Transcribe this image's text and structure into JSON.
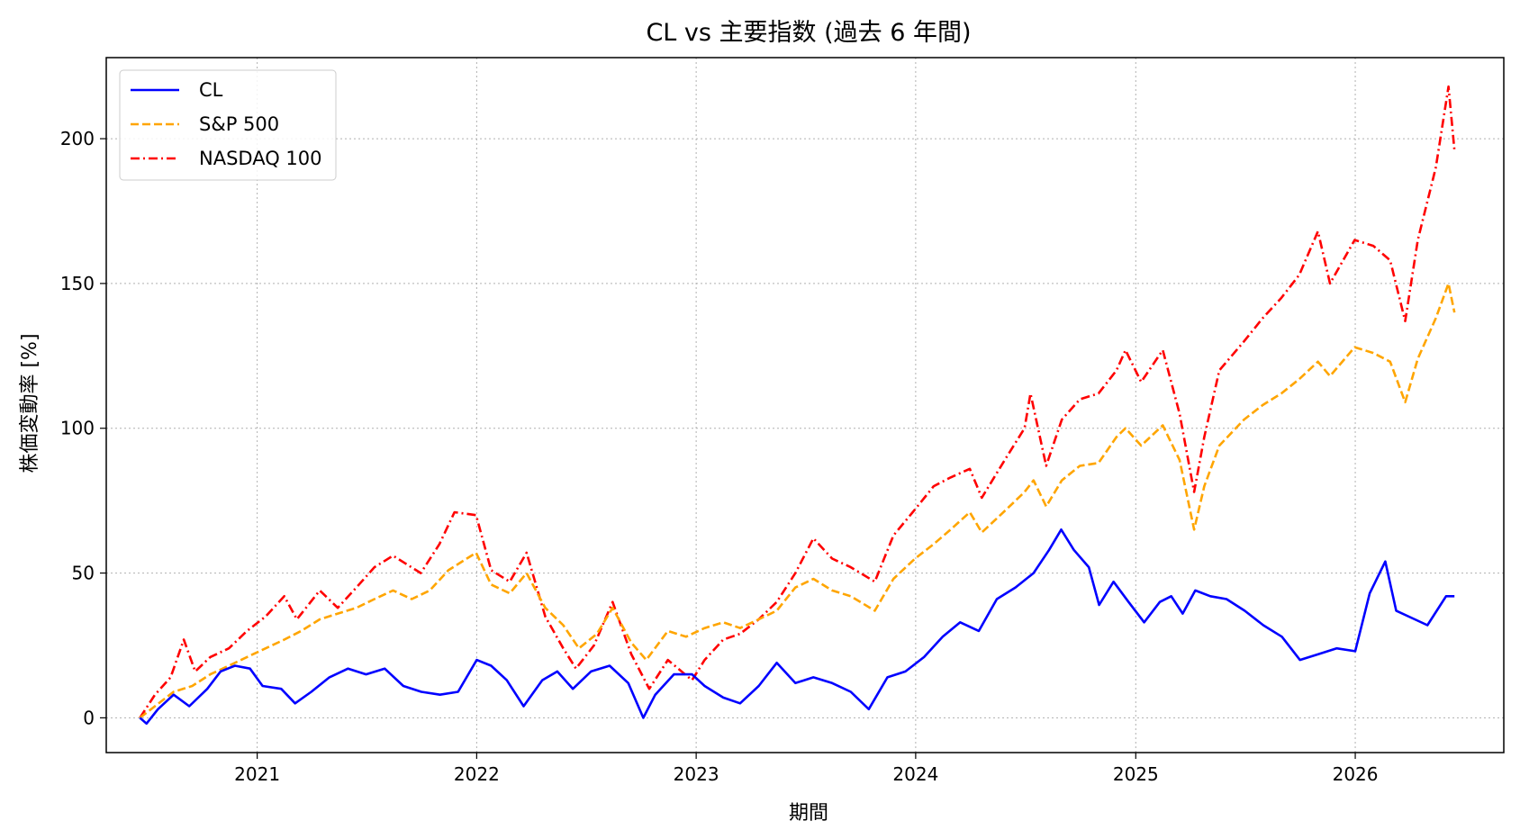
{
  "chart_data": {
    "type": "line",
    "title": "CL vs 主要指数 (過去 6 年間)",
    "xlabel": "期間",
    "ylabel": "株価変動率 [%]",
    "xlim": [
      "2020-04-25",
      "2026-09-05"
    ],
    "ylim": [
      -12,
      228
    ],
    "x_ticks": [
      "2021",
      "2022",
      "2023",
      "2024",
      "2025",
      "2026"
    ],
    "y_ticks": [
      0,
      50,
      100,
      150,
      200
    ],
    "grid": true,
    "legend_position": "top-left",
    "series": [
      {
        "name": "CL",
        "color": "#0000ff",
        "dash": "solid",
        "points": [
          [
            "2020-06-20",
            0
          ],
          [
            "2020-07-01",
            -2
          ],
          [
            "2020-07-20",
            3
          ],
          [
            "2020-08-15",
            8
          ],
          [
            "2020-09-10",
            4
          ],
          [
            "2020-10-10",
            10
          ],
          [
            "2020-11-01",
            16
          ],
          [
            "2020-11-25",
            18
          ],
          [
            "2020-12-20",
            17
          ],
          [
            "2021-01-10",
            11
          ],
          [
            "2021-02-10",
            10
          ],
          [
            "2021-03-05",
            5
          ],
          [
            "2021-04-01",
            9
          ],
          [
            "2021-05-01",
            14
          ],
          [
            "2021-06-01",
            17
          ],
          [
            "2021-07-01",
            15
          ],
          [
            "2021-08-01",
            17
          ],
          [
            "2021-09-01",
            11
          ],
          [
            "2021-10-01",
            9
          ],
          [
            "2021-11-01",
            8
          ],
          [
            "2021-12-01",
            9
          ],
          [
            "2022-01-01",
            20
          ],
          [
            "2022-01-25",
            18
          ],
          [
            "2022-02-20",
            13
          ],
          [
            "2022-03-20",
            4
          ],
          [
            "2022-04-20",
            13
          ],
          [
            "2022-05-15",
            16
          ],
          [
            "2022-06-10",
            10
          ],
          [
            "2022-07-10",
            16
          ],
          [
            "2022-08-10",
            18
          ],
          [
            "2022-09-10",
            12
          ],
          [
            "2022-10-05",
            0
          ],
          [
            "2022-10-25",
            8
          ],
          [
            "2022-11-25",
            15
          ],
          [
            "2022-12-25",
            15
          ],
          [
            "2023-01-15",
            11
          ],
          [
            "2023-02-15",
            7
          ],
          [
            "2023-03-15",
            5
          ],
          [
            "2023-04-15",
            11
          ],
          [
            "2023-05-15",
            19
          ],
          [
            "2023-06-15",
            12
          ],
          [
            "2023-07-15",
            14
          ],
          [
            "2023-08-15",
            12
          ],
          [
            "2023-09-15",
            9
          ],
          [
            "2023-10-15",
            3
          ],
          [
            "2023-11-15",
            14
          ],
          [
            "2023-12-15",
            16
          ],
          [
            "2024-01-15",
            21
          ],
          [
            "2024-02-15",
            28
          ],
          [
            "2024-03-15",
            33
          ],
          [
            "2024-04-15",
            30
          ],
          [
            "2024-05-15",
            41
          ],
          [
            "2024-06-15",
            45
          ],
          [
            "2024-07-15",
            50
          ],
          [
            "2024-08-10",
            58
          ],
          [
            "2024-08-30",
            65
          ],
          [
            "2024-09-20",
            58
          ],
          [
            "2024-10-15",
            52
          ],
          [
            "2024-11-01",
            39
          ],
          [
            "2024-11-25",
            47
          ],
          [
            "2024-12-20",
            40
          ],
          [
            "2025-01-15",
            33
          ],
          [
            "2025-02-10",
            40
          ],
          [
            "2025-03-01",
            42
          ],
          [
            "2025-03-20",
            36
          ],
          [
            "2025-04-10",
            44
          ],
          [
            "2025-05-05",
            42
          ],
          [
            "2025-06-01",
            41
          ],
          [
            "2025-07-01",
            37
          ],
          [
            "2025-08-01",
            32
          ],
          [
            "2025-09-01",
            28
          ],
          [
            "2025-10-01",
            20
          ],
          [
            "2025-11-01",
            22
          ],
          [
            "2025-12-01",
            24
          ],
          [
            "2026-01-01",
            23
          ],
          [
            "2026-01-25",
            43
          ],
          [
            "2026-02-20",
            54
          ],
          [
            "2026-03-10",
            37
          ],
          [
            "2026-04-10",
            34
          ],
          [
            "2026-05-01",
            32
          ],
          [
            "2026-06-01",
            42
          ],
          [
            "2026-06-15",
            42
          ]
        ]
      },
      {
        "name": "S&P 500",
        "color": "#ffa500",
        "dash": "dashed",
        "points": [
          [
            "2020-06-20",
            0
          ],
          [
            "2020-07-15",
            4
          ],
          [
            "2020-08-15",
            9
          ],
          [
            "2020-09-15",
            11
          ],
          [
            "2020-10-15",
            15
          ],
          [
            "2020-11-15",
            18
          ],
          [
            "2020-12-15",
            21
          ],
          [
            "2021-01-15",
            24
          ],
          [
            "2021-02-15",
            27
          ],
          [
            "2021-03-15",
            30
          ],
          [
            "2021-04-15",
            34
          ],
          [
            "2021-05-15",
            36
          ],
          [
            "2021-06-15",
            38
          ],
          [
            "2021-07-15",
            41
          ],
          [
            "2021-08-15",
            44
          ],
          [
            "2021-09-15",
            41
          ],
          [
            "2021-10-15",
            44
          ],
          [
            "2021-11-15",
            51
          ],
          [
            "2021-12-31",
            57
          ],
          [
            "2022-01-25",
            46
          ],
          [
            "2022-02-25",
            43
          ],
          [
            "2022-03-25",
            50
          ],
          [
            "2022-04-25",
            38
          ],
          [
            "2022-05-25",
            32
          ],
          [
            "2022-06-20",
            24
          ],
          [
            "2022-07-20",
            29
          ],
          [
            "2022-08-15",
            38
          ],
          [
            "2022-09-15",
            26
          ],
          [
            "2022-10-10",
            20
          ],
          [
            "2022-11-15",
            30
          ],
          [
            "2022-12-15",
            28
          ],
          [
            "2023-01-15",
            31
          ],
          [
            "2023-02-15",
            33
          ],
          [
            "2023-03-15",
            31
          ],
          [
            "2023-04-15",
            34
          ],
          [
            "2023-05-15",
            37
          ],
          [
            "2023-06-15",
            45
          ],
          [
            "2023-07-15",
            48
          ],
          [
            "2023-08-15",
            44
          ],
          [
            "2023-09-15",
            42
          ],
          [
            "2023-10-25",
            37
          ],
          [
            "2023-11-25",
            48
          ],
          [
            "2023-12-31",
            55
          ],
          [
            "2024-01-31",
            60
          ],
          [
            "2024-02-28",
            65
          ],
          [
            "2024-03-31",
            71
          ],
          [
            "2024-04-20",
            64
          ],
          [
            "2024-05-31",
            72
          ],
          [
            "2024-06-30",
            78
          ],
          [
            "2024-07-15",
            82
          ],
          [
            "2024-08-05",
            73
          ],
          [
            "2024-08-31",
            82
          ],
          [
            "2024-09-30",
            87
          ],
          [
            "2024-10-31",
            88
          ],
          [
            "2024-11-30",
            97
          ],
          [
            "2024-12-15",
            100
          ],
          [
            "2025-01-10",
            94
          ],
          [
            "2025-02-15",
            101
          ],
          [
            "2025-03-15",
            89
          ],
          [
            "2025-04-08",
            65
          ],
          [
            "2025-04-25",
            80
          ],
          [
            "2025-05-20",
            94
          ],
          [
            "2025-06-30",
            103
          ],
          [
            "2025-07-31",
            108
          ],
          [
            "2025-08-31",
            112
          ],
          [
            "2025-09-30",
            117
          ],
          [
            "2025-10-31",
            123
          ],
          [
            "2025-11-20",
            118
          ],
          [
            "2025-12-31",
            128
          ],
          [
            "2026-01-31",
            126
          ],
          [
            "2026-02-28",
            123
          ],
          [
            "2026-03-25",
            109
          ],
          [
            "2026-04-15",
            124
          ],
          [
            "2026-05-15",
            138
          ],
          [
            "2026-06-05",
            150
          ],
          [
            "2026-06-15",
            140
          ]
        ]
      },
      {
        "name": "NASDAQ 100",
        "color": "#ff0000",
        "dash": "dashdot",
        "points": [
          [
            "2020-06-20",
            0
          ],
          [
            "2020-07-15",
            8
          ],
          [
            "2020-08-10",
            14
          ],
          [
            "2020-09-01",
            27
          ],
          [
            "2020-09-20",
            16
          ],
          [
            "2020-10-15",
            21
          ],
          [
            "2020-11-15",
            24
          ],
          [
            "2020-12-15",
            30
          ],
          [
            "2021-01-15",
            35
          ],
          [
            "2021-02-15",
            42
          ],
          [
            "2021-03-08",
            34
          ],
          [
            "2021-04-15",
            44
          ],
          [
            "2021-05-15",
            38
          ],
          [
            "2021-06-15",
            45
          ],
          [
            "2021-07-15",
            52
          ],
          [
            "2021-08-15",
            56
          ],
          [
            "2021-09-30",
            50
          ],
          [
            "2021-10-31",
            60
          ],
          [
            "2021-11-25",
            71
          ],
          [
            "2021-12-31",
            70
          ],
          [
            "2022-01-25",
            51
          ],
          [
            "2022-02-25",
            47
          ],
          [
            "2022-03-25",
            57
          ],
          [
            "2022-04-25",
            35
          ],
          [
            "2022-05-25",
            24
          ],
          [
            "2022-06-15",
            17
          ],
          [
            "2022-07-15",
            25
          ],
          [
            "2022-08-15",
            40
          ],
          [
            "2022-09-15",
            22
          ],
          [
            "2022-10-15",
            10
          ],
          [
            "2022-11-15",
            20
          ],
          [
            "2022-12-25",
            13
          ],
          [
            "2023-01-15",
            20
          ],
          [
            "2023-02-15",
            27
          ],
          [
            "2023-03-15",
            29
          ],
          [
            "2023-04-15",
            34
          ],
          [
            "2023-05-15",
            40
          ],
          [
            "2023-06-15",
            50
          ],
          [
            "2023-07-15",
            62
          ],
          [
            "2023-08-15",
            55
          ],
          [
            "2023-09-15",
            52
          ],
          [
            "2023-10-25",
            47
          ],
          [
            "2023-11-25",
            63
          ],
          [
            "2023-12-31",
            72
          ],
          [
            "2024-01-31",
            80
          ],
          [
            "2024-02-28",
            83
          ],
          [
            "2024-03-31",
            86
          ],
          [
            "2024-04-20",
            76
          ],
          [
            "2024-05-31",
            90
          ],
          [
            "2024-06-30",
            100
          ],
          [
            "2024-07-10",
            112
          ],
          [
            "2024-08-05",
            87
          ],
          [
            "2024-08-31",
            103
          ],
          [
            "2024-09-30",
            110
          ],
          [
            "2024-10-31",
            112
          ],
          [
            "2024-11-30",
            120
          ],
          [
            "2024-12-15",
            127
          ],
          [
            "2025-01-10",
            116
          ],
          [
            "2025-02-15",
            127
          ],
          [
            "2025-03-15",
            105
          ],
          [
            "2025-04-08",
            78
          ],
          [
            "2025-04-25",
            97
          ],
          [
            "2025-05-20",
            120
          ],
          [
            "2025-06-30",
            130
          ],
          [
            "2025-07-31",
            138
          ],
          [
            "2025-08-31",
            145
          ],
          [
            "2025-09-30",
            153
          ],
          [
            "2025-10-31",
            168
          ],
          [
            "2025-11-20",
            150
          ],
          [
            "2025-12-31",
            165
          ],
          [
            "2026-01-31",
            163
          ],
          [
            "2026-02-28",
            158
          ],
          [
            "2026-03-25",
            137
          ],
          [
            "2026-04-15",
            165
          ],
          [
            "2026-05-15",
            190
          ],
          [
            "2026-06-05",
            218
          ],
          [
            "2026-06-15",
            196
          ]
        ]
      }
    ]
  }
}
